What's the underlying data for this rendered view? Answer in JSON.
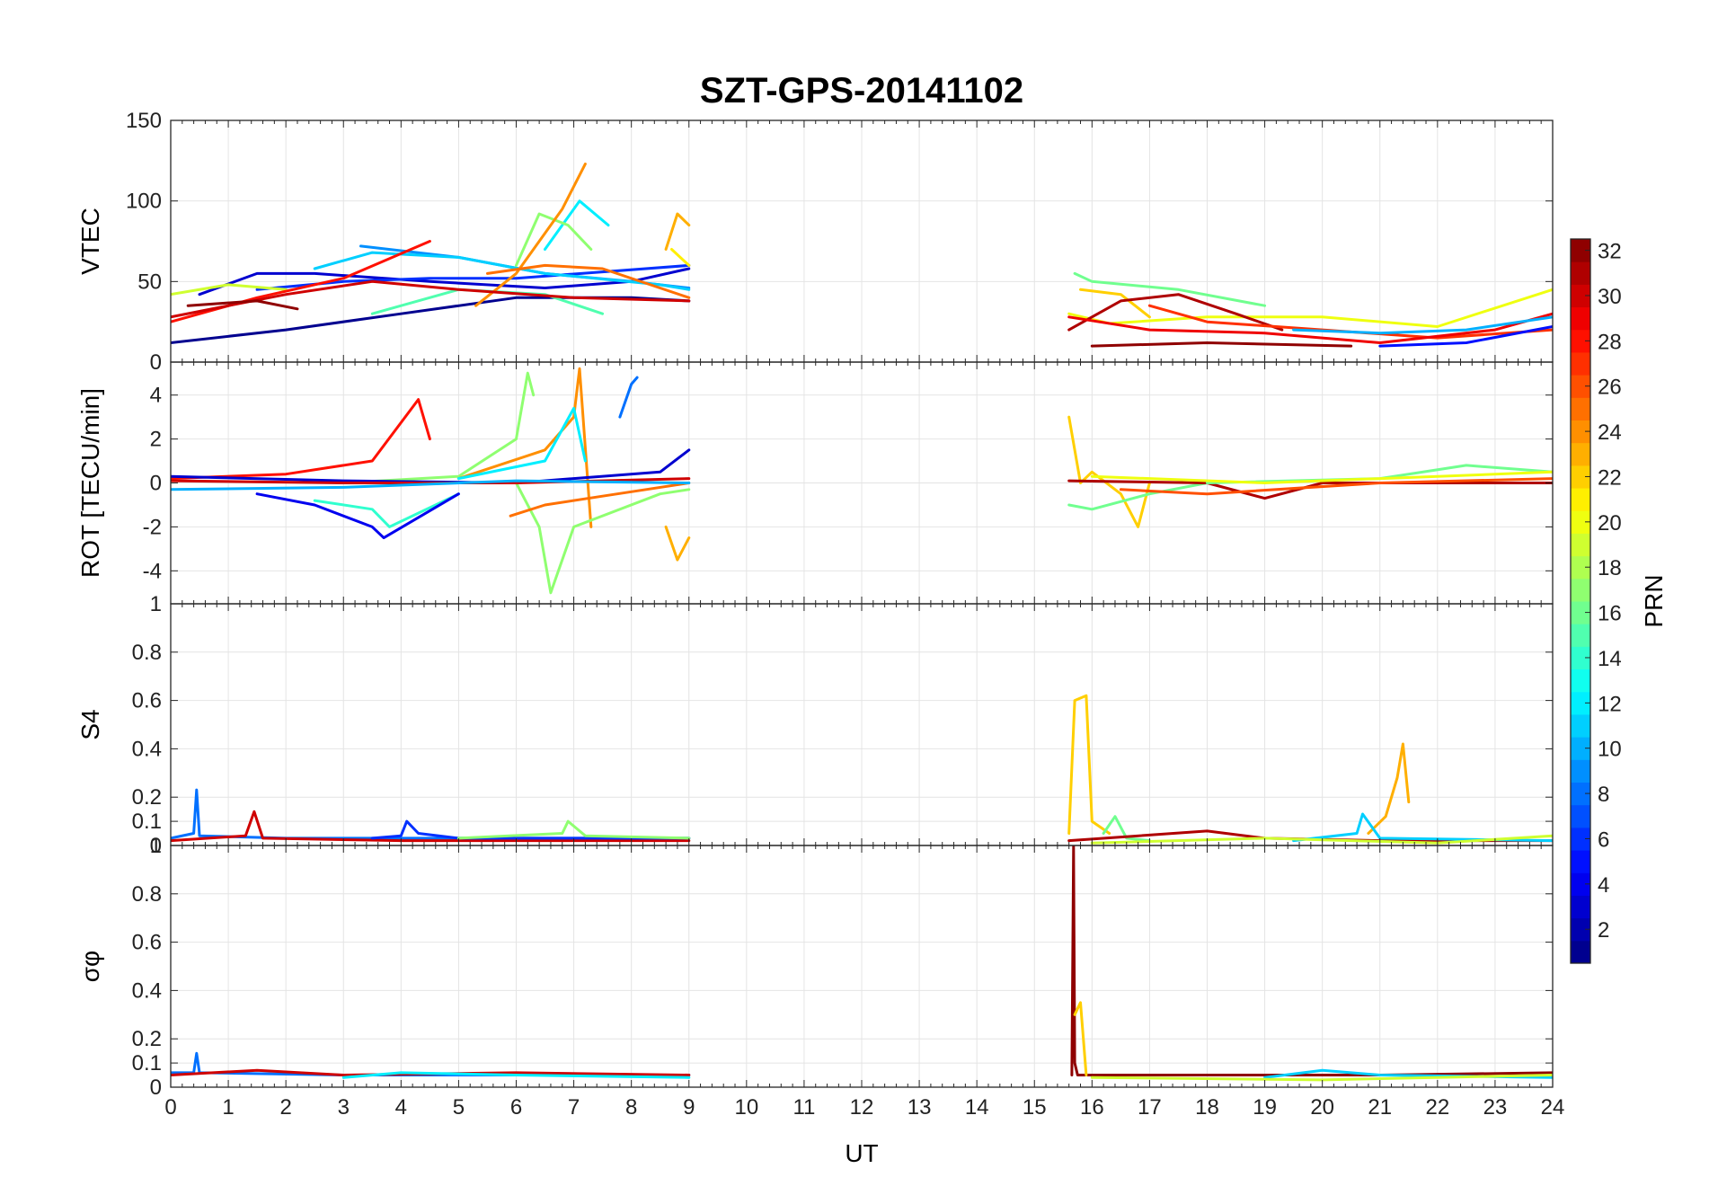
{
  "chart_data": {
    "type": "line",
    "title": "SZT-GPS-20141102",
    "xlabel": "UT",
    "xlim": [
      0,
      24
    ],
    "x_ticks": [
      "0",
      "1",
      "2",
      "3",
      "4",
      "5",
      "6",
      "7",
      "8",
      "9",
      "10",
      "11",
      "12",
      "13",
      "14",
      "15",
      "16",
      "17",
      "18",
      "19",
      "20",
      "21",
      "22",
      "23",
      "24"
    ],
    "grid": true,
    "colorbar": {
      "label": "PRN",
      "range": [
        1,
        32
      ],
      "colormap": "jet",
      "ticks": [
        "2",
        "4",
        "6",
        "8",
        "10",
        "12",
        "14",
        "16",
        "18",
        "20",
        "22",
        "24",
        "26",
        "28",
        "30",
        "32"
      ]
    },
    "panels": [
      {
        "ylabel": "VTEC",
        "ylim": [
          0,
          150
        ],
        "y_ticks": [
          "0",
          "50",
          "100",
          "150"
        ],
        "series": [
          {
            "prn": 1,
            "x": [
              0,
              2,
              4,
              6,
              8,
              9
            ],
            "y": [
              12,
              20,
              30,
              40,
              40,
              38
            ]
          },
          {
            "prn": 3,
            "x": [
              0.5,
              1.5,
              2.5,
              4.5,
              6.5,
              8,
              9
            ],
            "y": [
              42,
              55,
              55,
              50,
              46,
              50,
              58
            ]
          },
          {
            "prn": 6,
            "x": [
              1.5,
              3,
              4.5,
              6,
              7.5,
              9
            ],
            "y": [
              45,
              50,
              52,
              52,
              56,
              60
            ]
          },
          {
            "prn": 9,
            "x": [
              3.3,
              5,
              6.5,
              8,
              9
            ],
            "y": [
              72,
              65,
              55,
              50,
              46
            ]
          },
          {
            "prn": 11,
            "x": [
              2.5,
              3.5,
              5,
              6.5,
              8.5,
              9
            ],
            "y": [
              58,
              68,
              65,
              55,
              48,
              45
            ]
          },
          {
            "prn": 12,
            "x": [
              6.5,
              7.1,
              7.6
            ],
            "y": [
              70,
              100,
              85
            ]
          },
          {
            "prn": 15,
            "x": [
              3.5,
              5,
              6.5,
              7.5
            ],
            "y": [
              30,
              45,
              42,
              30
            ]
          },
          {
            "prn": 17,
            "x": [
              6,
              6.4,
              6.9,
              7.3
            ],
            "y": [
              60,
              92,
              85,
              70
            ]
          },
          {
            "prn": 19,
            "x": [
              0,
              1,
              2
            ],
            "y": [
              42,
              48,
              45
            ]
          },
          {
            "prn": 21,
            "x": [
              8.7,
              9
            ],
            "y": [
              70,
              60
            ]
          },
          {
            "prn": 23,
            "x": [
              8.6,
              8.8,
              9
            ],
            "y": [
              70,
              92,
              85
            ]
          },
          {
            "prn": 24,
            "x": [
              5.3,
              6,
              6.8,
              7.2
            ],
            "y": [
              35,
              55,
              95,
              123
            ]
          },
          {
            "prn": 25,
            "x": [
              5.5,
              6.5,
              7.5,
              9
            ],
            "y": [
              55,
              60,
              58,
              40
            ]
          },
          {
            "prn": 28,
            "x": [
              0,
              1.5,
              3,
              4.5
            ],
            "y": [
              25,
              40,
              52,
              75
            ]
          },
          {
            "prn": 30,
            "x": [
              0,
              2,
              3.5,
              5,
              7,
              9
            ],
            "y": [
              28,
              42,
              50,
              45,
              40,
              38
            ]
          },
          {
            "prn": 32,
            "x": [
              0.3,
              1.5,
              2.2
            ],
            "y": [
              35,
              38,
              33
            ]
          },
          {
            "prn": 20,
            "x": [
              15.6,
              16.3,
              18,
              20,
              22,
              24
            ],
            "y": [
              30,
              24,
              28,
              28,
              22,
              45
            ]
          },
          {
            "prn": 16,
            "x": [
              15.7,
              16,
              17.5,
              19
            ],
            "y": [
              55,
              50,
              45,
              35
            ]
          },
          {
            "prn": 22,
            "x": [
              15.8,
              16.5,
              17
            ],
            "y": [
              45,
              42,
              28
            ]
          },
          {
            "prn": 31,
            "x": [
              15.6,
              16.5,
              17.5,
              18.5,
              19.3
            ],
            "y": [
              20,
              38,
              42,
              30,
              20
            ]
          },
          {
            "prn": 27,
            "x": [
              17,
              18,
              20,
              22,
              24
            ],
            "y": [
              35,
              25,
              20,
              15,
              20
            ]
          },
          {
            "prn": 29,
            "x": [
              15.6,
              17,
              19,
              21,
              23,
              24
            ],
            "y": [
              28,
              20,
              18,
              12,
              20,
              30
            ]
          },
          {
            "prn": 10,
            "x": [
              19.5,
              21,
              22.5,
              24
            ],
            "y": [
              20,
              18,
              20,
              28
            ]
          },
          {
            "prn": 5,
            "x": [
              21,
              22.5,
              24
            ],
            "y": [
              10,
              12,
              22
            ]
          },
          {
            "prn": 32,
            "x": [
              16,
              18,
              20.5
            ],
            "y": [
              10,
              12,
              10
            ]
          }
        ]
      },
      {
        "ylabel": "ROT [TECU/min]",
        "ylim": [
          -5.5,
          5.5
        ],
        "y_ticks": [
          "-4",
          "-2",
          "0",
          "2",
          "4"
        ],
        "series": [
          {
            "prn": 28,
            "x": [
              0,
              2,
              3.5,
              4.3,
              4.5
            ],
            "y": [
              0.2,
              0.4,
              1,
              3.8,
              2
            ]
          },
          {
            "prn": 17,
            "x": [
              3,
              5,
              6,
              6.2,
              6.3
            ],
            "y": [
              0,
              0.3,
              2,
              5,
              4
            ]
          },
          {
            "prn": 24,
            "x": [
              5,
              6.5,
              7,
              7.1,
              7.3
            ],
            "y": [
              0.2,
              1.5,
              3,
              5.2,
              -2
            ]
          },
          {
            "prn": 12,
            "x": [
              5,
              6.5,
              7,
              7.2
            ],
            "y": [
              0.2,
              1,
              3.4,
              1
            ]
          },
          {
            "prn": 8,
            "x": [
              7.8,
              8,
              8.1
            ],
            "y": [
              3,
              4.5,
              4.8
            ]
          },
          {
            "prn": 14,
            "x": [
              2.5,
              3.5,
              3.8,
              5
            ],
            "y": [
              -0.8,
              -1.2,
              -2,
              -0.5
            ]
          },
          {
            "prn": 4,
            "x": [
              1.5,
              2.5,
              3.5,
              3.7,
              5
            ],
            "y": [
              -0.5,
              -1,
              -2,
              -2.5,
              -0.5
            ]
          },
          {
            "prn": 17,
            "x": [
              6,
              6.4,
              6.6,
              7,
              8.5,
              9
            ],
            "y": [
              0,
              -2,
              -5,
              -2,
              -0.5,
              -0.3
            ]
          },
          {
            "prn": 25,
            "x": [
              5.9,
              6.5,
              7.5,
              9
            ],
            "y": [
              -1.5,
              -1,
              -0.6,
              0
            ]
          },
          {
            "prn": 23,
            "x": [
              8.6,
              8.8,
              9
            ],
            "y": [
              -2,
              -3.5,
              -2.5
            ]
          },
          {
            "prn": 3,
            "x": [
              0,
              3,
              6,
              8.5,
              9
            ],
            "y": [
              0.3,
              0.1,
              0,
              0.5,
              1.5
            ]
          },
          {
            "prn": 30,
            "x": [
              0,
              3,
              6,
              9
            ],
            "y": [
              0.1,
              0,
              0,
              0.2
            ]
          },
          {
            "prn": 10,
            "x": [
              0,
              3,
              6,
              9
            ],
            "y": [
              -0.3,
              -0.2,
              0.1,
              0
            ]
          },
          {
            "prn": 22,
            "x": [
              15.6,
              15.8,
              16,
              16.5,
              16.8,
              17
            ],
            "y": [
              3,
              0,
              0.5,
              -0.5,
              -2,
              0
            ]
          },
          {
            "prn": 16,
            "x": [
              15.6,
              16,
              17,
              18
            ],
            "y": [
              -1,
              -1.2,
              -0.5,
              0
            ]
          },
          {
            "prn": 31,
            "x": [
              15.6,
              18,
              19,
              20,
              24
            ],
            "y": [
              0.1,
              0,
              -0.7,
              0,
              0
            ]
          },
          {
            "prn": 26,
            "x": [
              16.5,
              18,
              21,
              24
            ],
            "y": [
              -0.3,
              -0.5,
              0,
              0.2
            ]
          },
          {
            "prn": 16,
            "x": [
              18,
              21,
              22.5,
              24
            ],
            "y": [
              0,
              0.2,
              0.8,
              0.5
            ]
          },
          {
            "prn": 20,
            "x": [
              16,
              19,
              22,
              24
            ],
            "y": [
              0.3,
              0,
              0.3,
              0.5
            ]
          }
        ]
      },
      {
        "ylabel": "S4",
        "ylim": [
          0,
          1
        ],
        "y_ticks": [
          "0",
          "0.1",
          "0.2",
          "0.4",
          "0.6",
          "0.8",
          "1"
        ],
        "series": [
          {
            "prn": 8,
            "x": [
              0,
              0.4,
              0.45,
              0.5,
              2,
              5,
              9
            ],
            "y": [
              0.03,
              0.05,
              0.23,
              0.04,
              0.03,
              0.03,
              0.03
            ]
          },
          {
            "prn": 30,
            "x": [
              0,
              1.3,
              1.45,
              1.6,
              4,
              9
            ],
            "y": [
              0.02,
              0.04,
              0.14,
              0.03,
              0.02,
              0.02
            ]
          },
          {
            "prn": 6,
            "x": [
              3.5,
              4,
              4.1,
              4.3,
              5,
              9
            ],
            "y": [
              0.03,
              0.04,
              0.1,
              0.05,
              0.03,
              0.03
            ]
          },
          {
            "prn": 17,
            "x": [
              5,
              6.8,
              6.9,
              7.2,
              9
            ],
            "y": [
              0.03,
              0.05,
              0.1,
              0.04,
              0.03
            ]
          },
          {
            "prn": 22,
            "x": [
              15.6,
              15.7,
              15.9,
              16.0,
              16.3
            ],
            "y": [
              0.05,
              0.6,
              0.62,
              0.1,
              0.05
            ]
          },
          {
            "prn": 16,
            "x": [
              16.2,
              16.4,
              16.6,
              17
            ],
            "y": [
              0.05,
              0.12,
              0.03,
              0.02
            ]
          },
          {
            "prn": 31,
            "x": [
              15.6,
              18,
              19,
              21,
              24
            ],
            "y": [
              0.02,
              0.06,
              0.03,
              0.02,
              0.02
            ]
          },
          {
            "prn": 23,
            "x": [
              20.8,
              21.1,
              21.3,
              21.4,
              21.5
            ],
            "y": [
              0.05,
              0.12,
              0.28,
              0.42,
              0.18
            ]
          },
          {
            "prn": 11,
            "x": [
              19.5,
              20.6,
              20.7,
              21,
              24
            ],
            "y": [
              0.02,
              0.05,
              0.13,
              0.03,
              0.02
            ]
          },
          {
            "prn": 19,
            "x": [
              16,
              19,
              22,
              24
            ],
            "y": [
              0.01,
              0.03,
              0.01,
              0.04
            ]
          }
        ]
      },
      {
        "ylabel": "σφ",
        "ylim": [
          0,
          1
        ],
        "y_ticks": [
          "0",
          "0.1",
          "0.2",
          "0.4",
          "0.6",
          "0.8",
          "1"
        ],
        "series": [
          {
            "prn": 8,
            "x": [
              0,
              0.4,
              0.45,
              0.5,
              3,
              6,
              9
            ],
            "y": [
              0.06,
              0.06,
              0.14,
              0.06,
              0.05,
              0.05,
              0.05
            ]
          },
          {
            "prn": 30,
            "x": [
              0,
              1.5,
              3,
              6,
              9
            ],
            "y": [
              0.05,
              0.07,
              0.05,
              0.06,
              0.05
            ]
          },
          {
            "prn": 12,
            "x": [
              3,
              4,
              6,
              9
            ],
            "y": [
              0.04,
              0.06,
              0.05,
              0.04
            ]
          },
          {
            "prn": 32,
            "x": [
              15.65,
              15.68,
              15.7,
              15.75,
              18,
              21,
              24
            ],
            "y": [
              0.05,
              1,
              0.1,
              0.05,
              0.05,
              0.05,
              0.06
            ]
          },
          {
            "prn": 22,
            "x": [
              15.7,
              15.8,
              15.9
            ],
            "y": [
              0.3,
              0.35,
              0.05
            ]
          },
          {
            "prn": 11,
            "x": [
              19,
              20,
              21,
              24
            ],
            "y": [
              0.04,
              0.07,
              0.05,
              0.04
            ]
          },
          {
            "prn": 19,
            "x": [
              16,
              20,
              24
            ],
            "y": [
              0.04,
              0.03,
              0.05
            ]
          }
        ]
      }
    ]
  }
}
